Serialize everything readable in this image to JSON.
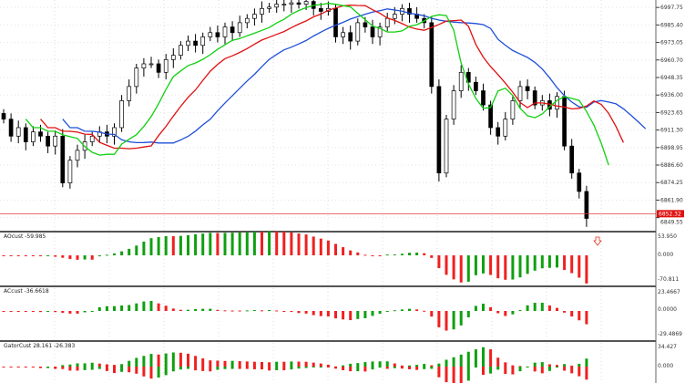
{
  "chart_data": {
    "type": "candlestick",
    "price_axis": [
      "6997.75",
      "6985.40",
      "6973.05",
      "6960.70",
      "6948.35",
      "6936.00",
      "6923.65",
      "6911.30",
      "6898.95",
      "6886.60",
      "6874.25",
      "6861.90",
      "6849.55"
    ],
    "current_price": "6852.32",
    "close": [
      6919,
      6907,
      6913,
      6903,
      6910,
      6907,
      6900,
      6907,
      6874,
      6890,
      6897,
      6903,
      6907,
      6910,
      6907,
      6913,
      6932,
      6942,
      6955,
      6958,
      6958,
      6952,
      6961,
      6964,
      6971,
      6974,
      6971,
      6977,
      6980,
      6977,
      6984,
      6980,
      6987,
      6990,
      6993,
      6997,
      6998,
      7000,
      7000,
      7001,
      7000,
      7002,
      6997,
      6995,
      6997,
      6977,
      6980,
      6974,
      6987,
      6984,
      6977,
      6984,
      6990,
      6993,
      6997,
      6993,
      6990,
      6987,
      6942,
      6881,
      6919,
      6939,
      6952,
      6945,
      6939,
      6929,
      6913,
      6907,
      6919,
      6932,
      6942,
      6939,
      6929,
      6932,
      6926,
      6935,
      6900,
      6881,
      6868,
      6849
    ],
    "lines": [
      {
        "name": "jaw",
        "color": "#1f4fd8"
      },
      {
        "name": "teeth",
        "color": "#e01010"
      },
      {
        "name": "lips",
        "color": "#10d010"
      }
    ],
    "panes": [
      {
        "label": "AOcust -59.985",
        "axis": [
          "53.950",
          "0.000",
          "-70.811"
        ]
      },
      {
        "label": "ACcust -36.6618",
        "axis": [
          "23.4667",
          "0.0000",
          "-29.4869"
        ]
      },
      {
        "label": "GatorCust 28.161 -26.383",
        "axis": [
          "34.427",
          "0.000"
        ]
      }
    ]
  }
}
